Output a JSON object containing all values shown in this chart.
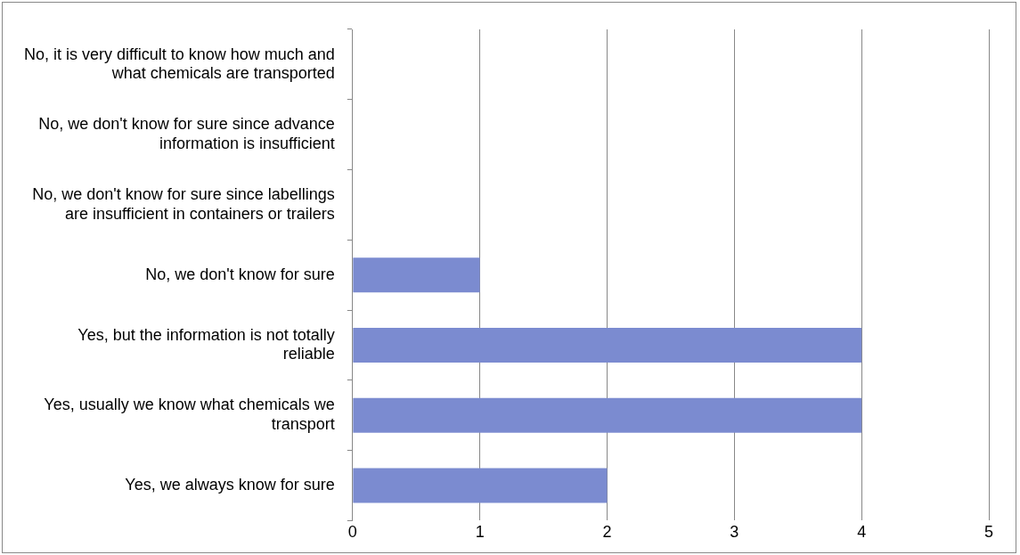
{
  "chart_data": {
    "type": "bar",
    "orientation": "horizontal",
    "categories": [
      "No, it is very difficult to know how much and what chemicals are transported",
      "No, we don't know for sure since advance information is insufficient",
      "No, we don't know for sure since labellings are insufficient in containers or trailers",
      "No, we don't know for sure",
      "Yes, but the information is not totally reliable",
      "Yes, usually we know what chemicals we transport",
      "Yes, we always know for sure"
    ],
    "values": [
      0,
      0,
      0,
      1,
      4,
      4,
      2
    ],
    "color": "#7b8bd0",
    "xlim": [
      0,
      5
    ],
    "xticks": [
      0,
      1,
      2,
      3,
      4,
      5
    ],
    "grid": "x",
    "legend": false
  }
}
